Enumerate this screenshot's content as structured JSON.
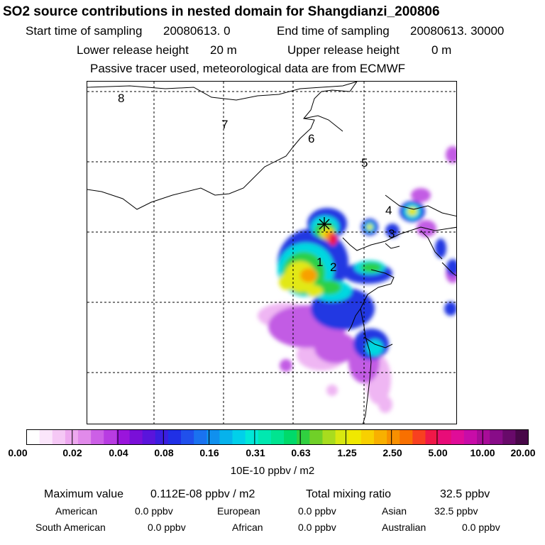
{
  "header": {
    "title": "SO2 source contributions in nested domain for Shangdianzi_200806",
    "start_label": "Start time of sampling",
    "start_value": "20080613.    0",
    "end_label": "End time of sampling",
    "end_value": "20080613. 30000",
    "lower_label": "Lower release height",
    "lower_value": "20 m",
    "upper_label": "Upper release height",
    "upper_value": "0 m",
    "info": "Passive tracer used, meteorological data are from ECMWF"
  },
  "map": {
    "region_labels": [
      "1",
      "2",
      "3",
      "4",
      "5",
      "6",
      "7",
      "8"
    ],
    "receptor_marker": "asterisk-icon"
  },
  "colorbar": {
    "tick_labels": [
      "0.00",
      "0.02",
      "0.04",
      "0.08",
      "0.16",
      "0.31",
      "0.63",
      "1.25",
      "2.50",
      "5.00",
      "10.00",
      "20.00"
    ],
    "units": "10E-10 ppbv / m2",
    "colors": [
      "#ffffff",
      "#fbe6fb",
      "#f5c8f5",
      "#eda8ef",
      "#e18aea",
      "#cc5fe6",
      "#b83ce2",
      "#9a15dc",
      "#7a0fd8",
      "#5a14dc",
      "#3a1ee0",
      "#2030e6",
      "#2050ec",
      "#1a72f0",
      "#1090ee",
      "#06b2ec",
      "#00d0ea",
      "#00e8d8",
      "#00e8b0",
      "#00e490",
      "#00da6a",
      "#30d040",
      "#70d028",
      "#a8dc1e",
      "#d8e810",
      "#f0e800",
      "#f8d000",
      "#f8b000",
      "#f89000",
      "#f87000",
      "#f84020",
      "#f01848",
      "#e80c78",
      "#e00c98",
      "#c80ca8",
      "#a80c98",
      "#880c88",
      "#680a6a",
      "#480848"
    ]
  },
  "summary": {
    "max_label": "Maximum value",
    "max_value": "0.112E-08 ppbv / m2",
    "total_label": "Total mixing ratio",
    "total_value": "32.5 ppbv",
    "regions": [
      {
        "name": "American",
        "value": "0.0 ppbv"
      },
      {
        "name": "European",
        "value": "0.0 ppbv"
      },
      {
        "name": "Asian",
        "value": "32.5 ppbv"
      },
      {
        "name": "South American",
        "value": "0.0 ppbv"
      },
      {
        "name": "African",
        "value": "0.0 ppbv"
      },
      {
        "name": "Australian",
        "value": "0.0 ppbv"
      }
    ]
  }
}
